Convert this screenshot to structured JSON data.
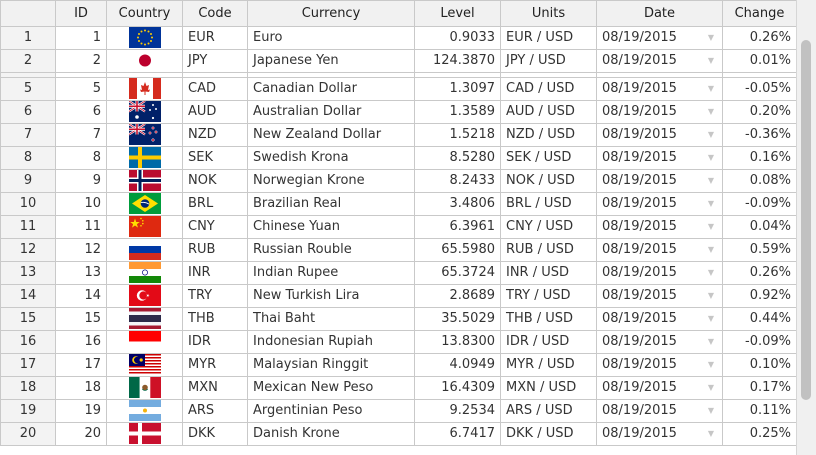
{
  "columns": {
    "row_header": "",
    "id": "ID",
    "country": "Country",
    "code": "Code",
    "currency": "Currency",
    "level": "Level",
    "units": "Units",
    "date": "Date",
    "change": "Change"
  },
  "rows": [
    {
      "row": "1",
      "id": "1",
      "flag": "eu-flag-icon",
      "code": "EUR",
      "currency": "Euro",
      "level": "0.9033",
      "units": "EUR / USD",
      "date": "08/19/2015",
      "change": "0.26%"
    },
    {
      "row": "2",
      "id": "2",
      "flag": "japan-flag-icon",
      "code": "JPY",
      "currency": "Japanese Yen",
      "level": "124.3870",
      "units": "JPY / USD",
      "date": "08/19/2015",
      "change": "0.01%"
    },
    {
      "row": "5",
      "id": "5",
      "flag": "canada-flag-icon",
      "code": "CAD",
      "currency": "Canadian Dollar",
      "level": "1.3097",
      "units": "CAD / USD",
      "date": "08/19/2015",
      "change": "-0.05%"
    },
    {
      "row": "6",
      "id": "6",
      "flag": "australia-flag-icon",
      "code": "AUD",
      "currency": "Australian Dollar",
      "level": "1.3589",
      "units": "AUD / USD",
      "date": "08/19/2015",
      "change": "0.20%"
    },
    {
      "row": "7",
      "id": "7",
      "flag": "new-zealand-flag-icon",
      "code": "NZD",
      "currency": "New Zealand Dollar",
      "level": "1.5218",
      "units": "NZD / USD",
      "date": "08/19/2015",
      "change": "-0.36%"
    },
    {
      "row": "8",
      "id": "8",
      "flag": "sweden-flag-icon",
      "code": "SEK",
      "currency": "Swedish Krona",
      "level": "8.5280",
      "units": "SEK / USD",
      "date": "08/19/2015",
      "change": "0.16%"
    },
    {
      "row": "9",
      "id": "9",
      "flag": "norway-flag-icon",
      "code": "NOK",
      "currency": "Norwegian Krone",
      "level": "8.2433",
      "units": "NOK / USD",
      "date": "08/19/2015",
      "change": "0.08%"
    },
    {
      "row": "10",
      "id": "10",
      "flag": "brazil-flag-icon",
      "code": "BRL",
      "currency": "Brazilian Real",
      "level": "3.4806",
      "units": "BRL / USD",
      "date": "08/19/2015",
      "change": "-0.09%"
    },
    {
      "row": "11",
      "id": "11",
      "flag": "china-flag-icon",
      "code": "CNY",
      "currency": "Chinese Yuan",
      "level": "6.3961",
      "units": "CNY / USD",
      "date": "08/19/2015",
      "change": "0.04%"
    },
    {
      "row": "12",
      "id": "12",
      "flag": "russia-flag-icon",
      "code": "RUB",
      "currency": "Russian Rouble",
      "level": "65.5980",
      "units": "RUB / USD",
      "date": "08/19/2015",
      "change": "0.59%"
    },
    {
      "row": "13",
      "id": "13",
      "flag": "india-flag-icon",
      "code": "INR",
      "currency": "Indian Rupee",
      "level": "65.3724",
      "units": "INR / USD",
      "date": "08/19/2015",
      "change": "0.26%"
    },
    {
      "row": "14",
      "id": "14",
      "flag": "turkey-flag-icon",
      "code": "TRY",
      "currency": "New Turkish Lira",
      "level": "2.8689",
      "units": "TRY / USD",
      "date": "08/19/2015",
      "change": "0.92%"
    },
    {
      "row": "15",
      "id": "15",
      "flag": "thailand-flag-icon",
      "code": "THB",
      "currency": "Thai Baht",
      "level": "35.5029",
      "units": "THB / USD",
      "date": "08/19/2015",
      "change": "0.44%"
    },
    {
      "row": "16",
      "id": "16",
      "flag": "indonesia-flag-icon",
      "code": "IDR",
      "currency": "Indonesian Rupiah",
      "level": "13.8300",
      "units": "IDR / USD",
      "date": "08/19/2015",
      "change": "-0.09%"
    },
    {
      "row": "17",
      "id": "17",
      "flag": "malaysia-flag-icon",
      "code": "MYR",
      "currency": "Malaysian Ringgit",
      "level": "4.0949",
      "units": "MYR / USD",
      "date": "08/19/2015",
      "change": "0.10%"
    },
    {
      "row": "18",
      "id": "18",
      "flag": "mexico-flag-icon",
      "code": "MXN",
      "currency": "Mexican New Peso",
      "level": "16.4309",
      "units": "MXN / USD",
      "date": "08/19/2015",
      "change": "0.17%"
    },
    {
      "row": "19",
      "id": "19",
      "flag": "argentina-flag-icon",
      "code": "ARS",
      "currency": "Argentinian Peso",
      "level": "9.2534",
      "units": "ARS / USD",
      "date": "08/19/2015",
      "change": "0.11%"
    },
    {
      "row": "20",
      "id": "20",
      "flag": "denmark-flag-icon",
      "code": "DKK",
      "currency": "Danish Krone",
      "level": "6.7417",
      "units": "DKK / USD",
      "date": "08/19/2015",
      "change": "0.25%"
    }
  ]
}
